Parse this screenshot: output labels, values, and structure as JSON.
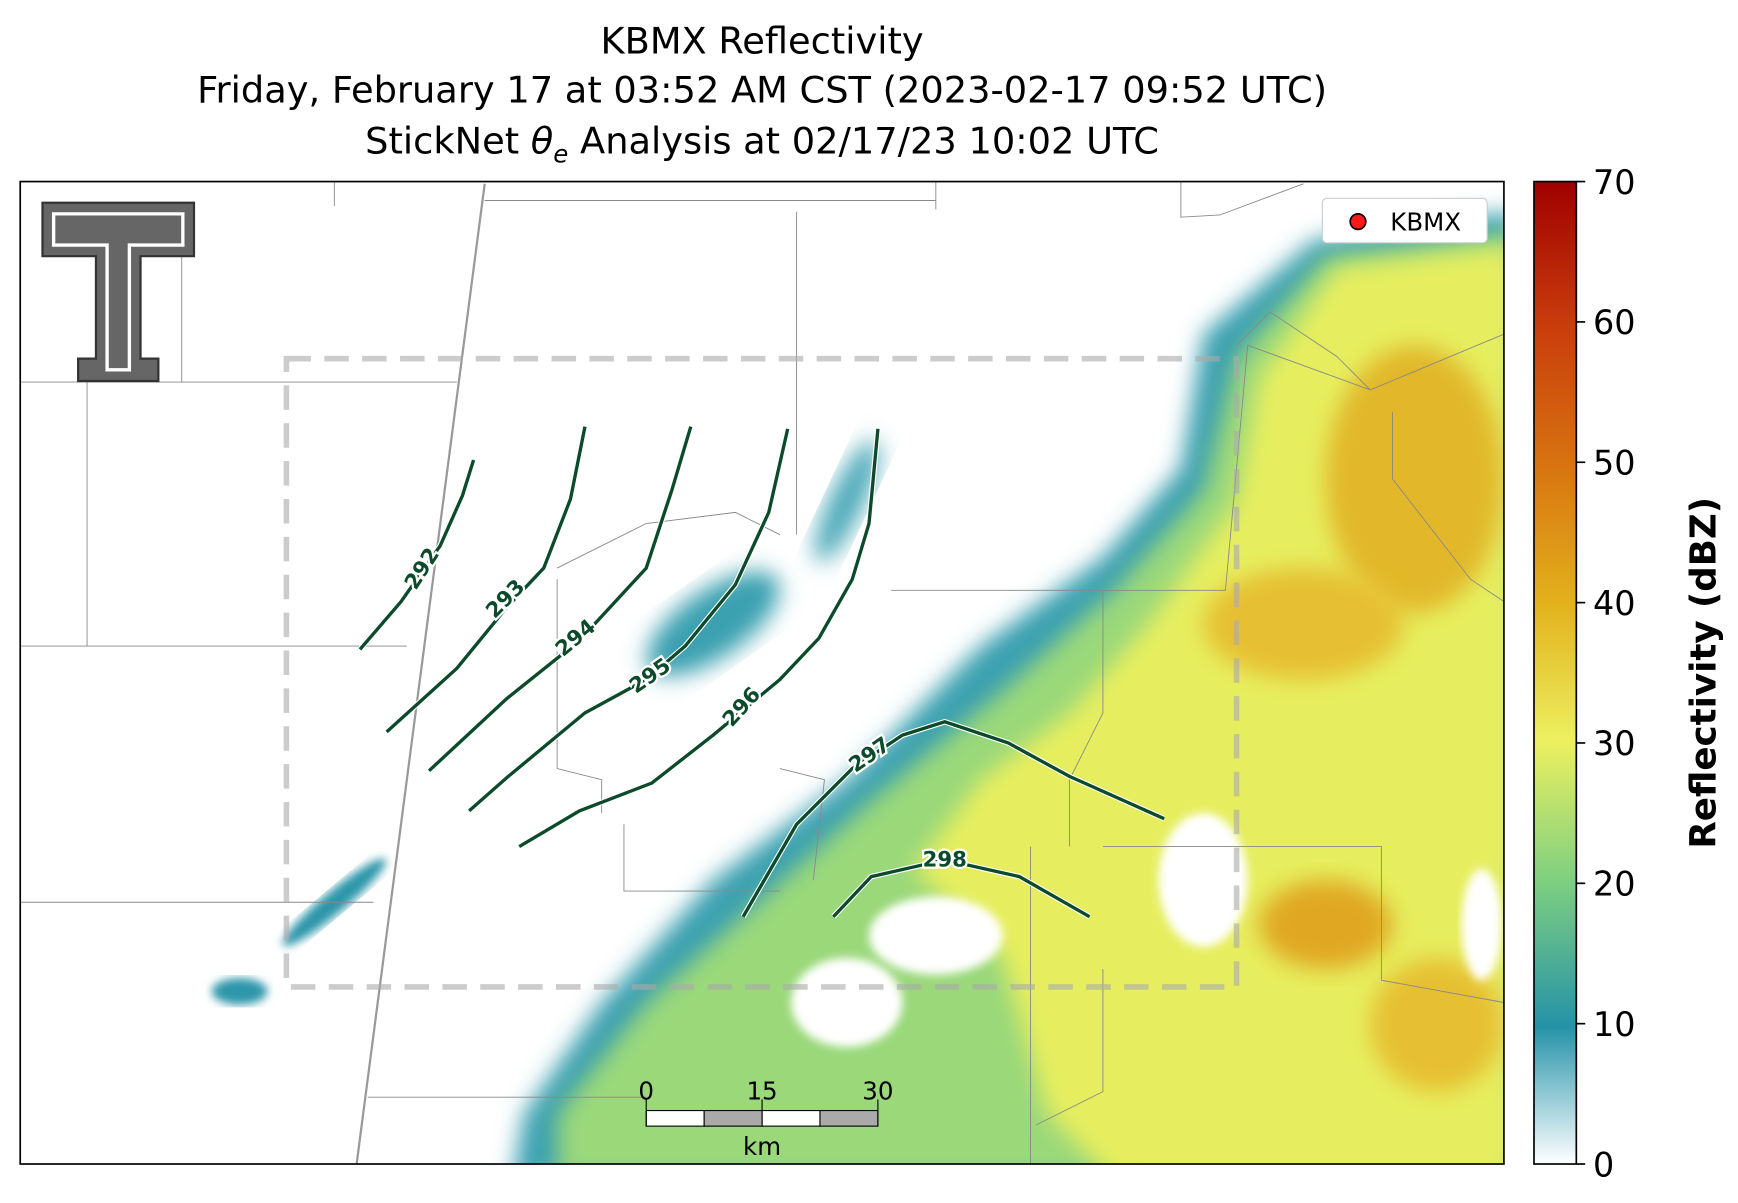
{
  "title": {
    "line1": "KBMX Reflectivity",
    "line2": "Friday, February 17 at 03:52 AM CST (2023-02-17 09:52 UTC)",
    "line3": {
      "prefix": "StickNet ",
      "symbol": "θ",
      "subscript": "e",
      "suffix": " Analysis at 02/17/23 10:02 UTC"
    }
  },
  "legend": {
    "label": "KBMX",
    "color": "#ff1a1a"
  },
  "colorbar": {
    "label": "Reflectivity (dBZ)",
    "lim": [
      0,
      70
    ],
    "ticks": [
      0,
      10,
      20,
      30,
      40,
      50,
      60,
      70
    ]
  },
  "contours": [
    292,
    293,
    294,
    295,
    296,
    297,
    298
  ],
  "scale_bar": {
    "ticks": [
      0,
      15,
      30
    ],
    "unit": "km"
  }
}
